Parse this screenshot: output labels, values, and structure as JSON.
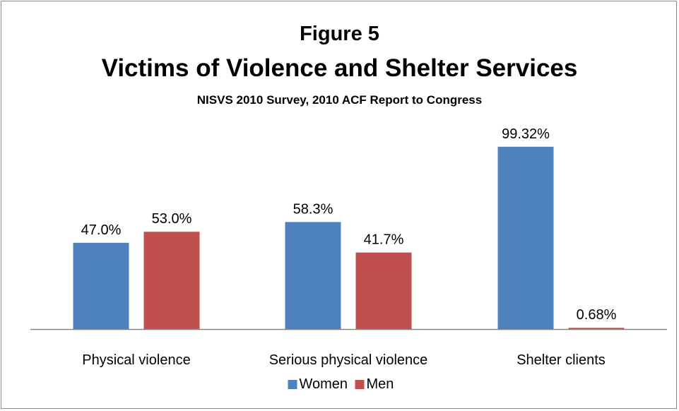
{
  "chart_data": {
    "type": "bar",
    "title": "Figure 5",
    "subtitle": "Victims of Violence and Shelter Services",
    "subsubtitle": "NISVS 2010 Survey, 2010 ACF Report to Congress",
    "categories": [
      "Physical violence",
      "Serious physical violence",
      "Shelter clients"
    ],
    "series": [
      {
        "name": "Women",
        "color": "#4f81bd",
        "values": [
          47.0,
          58.3,
          99.32
        ],
        "labels": [
          "47.0%",
          "58.3%",
          "99.32%"
        ]
      },
      {
        "name": "Men",
        "color": "#c0504d",
        "values": [
          53.0,
          41.7,
          0.68
        ],
        "labels": [
          "53.0%",
          "41.7%",
          "0.68%"
        ]
      }
    ],
    "ylim": [
      0,
      100
    ],
    "grid": false,
    "legend_position": "bottom"
  }
}
